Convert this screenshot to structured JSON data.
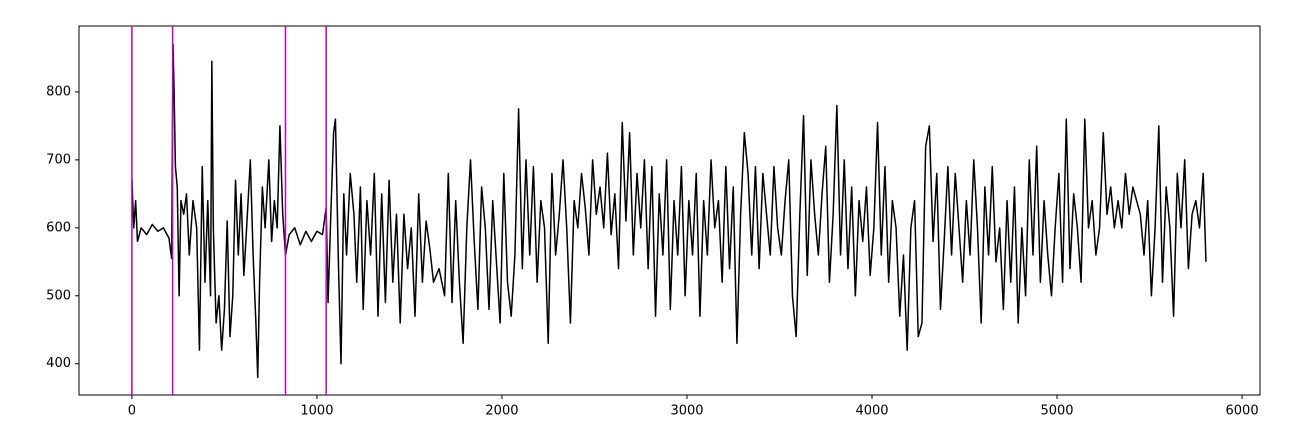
{
  "chart_data": {
    "type": "line",
    "color": "#000000",
    "vlines": [
      0,
      220,
      830,
      1050
    ],
    "vline_color": "#bf00bf",
    "xlim": [
      -286,
      6097
    ],
    "ylim": [
      354,
      897
    ],
    "xticks": [
      0,
      1000,
      2000,
      3000,
      4000,
      5000,
      6000
    ],
    "yticks": [
      400,
      500,
      600,
      700,
      800
    ],
    "x": [
      0,
      10,
      20,
      30,
      50,
      80,
      110,
      140,
      170,
      200,
      215,
      222,
      228,
      235,
      245,
      255,
      265,
      280,
      295,
      310,
      330,
      350,
      365,
      380,
      395,
      410,
      425,
      432,
      440,
      455,
      470,
      485,
      500,
      515,
      530,
      545,
      560,
      575,
      590,
      605,
      620,
      640,
      655,
      670,
      680,
      690,
      705,
      720,
      740,
      755,
      770,
      785,
      800,
      815,
      830,
      850,
      880,
      910,
      940,
      970,
      1000,
      1030,
      1050,
      1060,
      1075,
      1090,
      1100,
      1115,
      1130,
      1145,
      1160,
      1180,
      1200,
      1215,
      1235,
      1250,
      1270,
      1290,
      1310,
      1330,
      1350,
      1370,
      1390,
      1410,
      1430,
      1450,
      1470,
      1490,
      1510,
      1530,
      1550,
      1570,
      1590,
      1610,
      1630,
      1660,
      1690,
      1710,
      1730,
      1750,
      1770,
      1790,
      1810,
      1830,
      1850,
      1870,
      1890,
      1910,
      1930,
      1950,
      1970,
      1990,
      2010,
      2030,
      2050,
      2070,
      2090,
      2110,
      2130,
      2150,
      2170,
      2190,
      2210,
      2230,
      2250,
      2270,
      2290,
      2310,
      2330,
      2350,
      2370,
      2390,
      2410,
      2430,
      2450,
      2470,
      2490,
      2510,
      2530,
      2550,
      2570,
      2590,
      2610,
      2630,
      2650,
      2670,
      2690,
      2710,
      2730,
      2750,
      2770,
      2790,
      2810,
      2830,
      2850,
      2870,
      2890,
      2910,
      2930,
      2950,
      2970,
      2990,
      3010,
      3030,
      3050,
      3070,
      3090,
      3110,
      3130,
      3150,
      3170,
      3190,
      3210,
      3230,
      3250,
      3270,
      3290,
      3310,
      3330,
      3350,
      3370,
      3390,
      3410,
      3430,
      3450,
      3470,
      3490,
      3510,
      3530,
      3550,
      3570,
      3590,
      3610,
      3630,
      3650,
      3670,
      3690,
      3710,
      3730,
      3750,
      3770,
      3790,
      3810,
      3830,
      3850,
      3870,
      3890,
      3910,
      3930,
      3950,
      3970,
      3990,
      4010,
      4030,
      4050,
      4070,
      4090,
      4110,
      4130,
      4150,
      4170,
      4190,
      4210,
      4230,
      4250,
      4270,
      4290,
      4310,
      4330,
      4350,
      4370,
      4390,
      4410,
      4430,
      4450,
      4470,
      4490,
      4510,
      4530,
      4550,
      4570,
      4590,
      4610,
      4630,
      4650,
      4670,
      4690,
      4710,
      4730,
      4750,
      4770,
      4790,
      4810,
      4830,
      4850,
      4870,
      4890,
      4910,
      4930,
      4950,
      4970,
      4990,
      5010,
      5030,
      5050,
      5070,
      5090,
      5110,
      5130,
      5150,
      5170,
      5190,
      5210,
      5230,
      5250,
      5270,
      5290,
      5310,
      5330,
      5350,
      5370,
      5390,
      5410,
      5430,
      5450,
      5470,
      5490,
      5510,
      5530,
      5550,
      5570,
      5590,
      5610,
      5630,
      5650,
      5670,
      5690,
      5710,
      5730,
      5750,
      5770,
      5790,
      5805
    ],
    "values": [
      670,
      600,
      640,
      580,
      600,
      590,
      605,
      595,
      600,
      585,
      555,
      870,
      800,
      690,
      660,
      500,
      640,
      620,
      650,
      560,
      640,
      600,
      420,
      690,
      520,
      640,
      500,
      845,
      600,
      460,
      500,
      420,
      480,
      610,
      440,
      500,
      670,
      560,
      650,
      530,
      600,
      700,
      560,
      460,
      380,
      520,
      660,
      600,
      700,
      580,
      640,
      600,
      750,
      620,
      560,
      590,
      600,
      575,
      595,
      580,
      595,
      590,
      630,
      490,
      620,
      740,
      760,
      560,
      400,
      650,
      560,
      680,
      620,
      520,
      660,
      480,
      640,
      560,
      680,
      470,
      650,
      490,
      670,
      520,
      620,
      460,
      620,
      540,
      600,
      470,
      650,
      520,
      610,
      570,
      520,
      540,
      500,
      680,
      490,
      640,
      520,
      430,
      600,
      700,
      580,
      480,
      660,
      600,
      480,
      640,
      550,
      460,
      680,
      520,
      470,
      560,
      775,
      540,
      700,
      560,
      690,
      520,
      640,
      600,
      430,
      680,
      560,
      620,
      700,
      600,
      460,
      640,
      600,
      680,
      630,
      560,
      700,
      620,
      660,
      600,
      710,
      590,
      650,
      540,
      755,
      610,
      740,
      560,
      680,
      600,
      700,
      540,
      690,
      470,
      650,
      560,
      700,
      480,
      640,
      560,
      690,
      500,
      640,
      560,
      680,
      470,
      640,
      560,
      700,
      600,
      640,
      520,
      690,
      540,
      660,
      430,
      620,
      740,
      680,
      560,
      690,
      540,
      680,
      620,
      560,
      690,
      600,
      560,
      640,
      700,
      500,
      440,
      620,
      765,
      530,
      700,
      620,
      560,
      650,
      720,
      520,
      620,
      780,
      560,
      700,
      540,
      660,
      500,
      640,
      580,
      660,
      530,
      600,
      755,
      560,
      690,
      520,
      640,
      600,
      470,
      560,
      420,
      600,
      640,
      440,
      460,
      720,
      750,
      580,
      680,
      480,
      580,
      690,
      560,
      680,
      600,
      520,
      640,
      560,
      700,
      600,
      460,
      660,
      560,
      690,
      550,
      600,
      480,
      640,
      520,
      660,
      460,
      600,
      500,
      700,
      560,
      720,
      520,
      640,
      560,
      500,
      600,
      680,
      520,
      760,
      540,
      650,
      600,
      520,
      760,
      600,
      640,
      560,
      600,
      740,
      620,
      660,
      600,
      640,
      600,
      680,
      620,
      660,
      640,
      620,
      560,
      640,
      500,
      600,
      750,
      520,
      660,
      600,
      470,
      680,
      600,
      700,
      540,
      620,
      640,
      600,
      680,
      550
    ]
  }
}
